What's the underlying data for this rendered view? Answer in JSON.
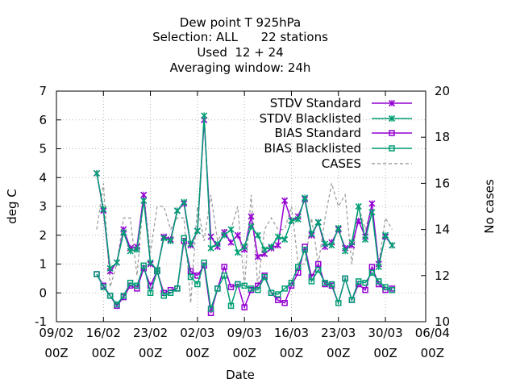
{
  "chart_data": {
    "type": "line",
    "title_lines": [
      "Dew point T 925hPa",
      "Selection: ALL      22 stations",
      "Used  12 + 24",
      "Averaging window: 24h"
    ],
    "xlabel": "Date",
    "ylabel": "deg C",
    "y2label": "No cases",
    "ylim": [
      -1,
      7
    ],
    "y2lim": [
      10,
      20
    ],
    "xlim": [
      0,
      55
    ],
    "yticks": [
      -1,
      0,
      1,
      2,
      3,
      4,
      5,
      6,
      7
    ],
    "y2ticks": [
      10,
      12,
      14,
      16,
      18,
      20
    ],
    "xtick_values": [
      0,
      7,
      14,
      21,
      28,
      35,
      42,
      49,
      56
    ],
    "xtick_labels": [
      [
        "09/02",
        "00Z"
      ],
      [
        "16/02",
        "00Z"
      ],
      [
        "23/02",
        "00Z"
      ],
      [
        "02/03",
        "00Z"
      ],
      [
        "09/03",
        "00Z"
      ],
      [
        "16/03",
        "00Z"
      ],
      [
        "23/03",
        "00Z"
      ],
      [
        "30/03",
        "00Z"
      ],
      [
        "06/04",
        "00Z"
      ]
    ],
    "grid": true,
    "legend_position": "top-right",
    "colors": {
      "standard": "#9400d3",
      "blacklisted": "#009e73",
      "cases": "#a0a0a0"
    },
    "x": [
      6,
      7,
      8,
      9,
      10,
      11,
      12,
      13,
      14,
      15,
      16,
      17,
      18,
      19,
      20,
      21,
      22,
      23,
      24,
      25,
      26,
      27,
      28,
      29,
      30,
      31,
      32,
      33,
      34,
      35,
      36,
      37,
      38,
      39,
      40,
      41,
      42,
      43,
      44,
      45,
      46,
      47,
      48,
      49,
      50
    ],
    "series": [
      {
        "name": "STDV Standard",
        "marker": "x",
        "role": "stdv_std",
        "values": [
          4.15,
          2.85,
          0.75,
          1.05,
          2.2,
          1.55,
          1.6,
          3.4,
          1.0,
          0.8,
          1.95,
          1.85,
          2.85,
          3.1,
          1.65,
          2.15,
          6.0,
          1.95,
          1.6,
          2.1,
          1.75,
          2.0,
          1.5,
          2.65,
          1.25,
          1.35,
          1.55,
          1.65,
          3.2,
          2.5,
          2.65,
          3.25,
          2.0,
          2.45,
          1.6,
          1.75,
          2.2,
          1.55,
          1.65,
          2.5,
          1.95,
          3.1,
          1.0,
          1.95,
          1.65
        ]
      },
      {
        "name": "STDV Blacklisted",
        "marker": "x",
        "role": "stdv_bl",
        "values": [
          4.15,
          2.9,
          0.85,
          1.05,
          2.1,
          1.45,
          1.5,
          3.2,
          1.05,
          0.8,
          1.9,
          1.8,
          2.85,
          3.15,
          1.7,
          2.15,
          6.15,
          1.55,
          1.7,
          2.0,
          2.2,
          1.4,
          1.6,
          2.3,
          2.0,
          1.5,
          1.6,
          1.95,
          1.85,
          2.5,
          2.55,
          3.3,
          2.05,
          2.45,
          1.7,
          1.65,
          2.25,
          1.45,
          1.75,
          3.0,
          1.85,
          2.8,
          0.9,
          2.0,
          1.65
        ]
      },
      {
        "name": "BIAS Standard",
        "marker": "square",
        "role": "bias_std",
        "values": [
          0.65,
          0.25,
          -0.1,
          -0.45,
          -0.15,
          0.25,
          0.15,
          0.85,
          0.25,
          0.75,
          0.0,
          0.1,
          0.15,
          1.8,
          0.75,
          0.6,
          0.95,
          -0.7,
          0.15,
          0.9,
          0.2,
          0.3,
          -0.5,
          0.1,
          0.25,
          0.6,
          0.0,
          -0.25,
          -0.35,
          0.25,
          0.7,
          1.6,
          0.55,
          1.0,
          0.3,
          0.25,
          -0.35,
          0.5,
          -0.25,
          0.3,
          0.1,
          0.9,
          0.3,
          0.1,
          0.15
        ]
      },
      {
        "name": "BIAS Blacklisted",
        "marker": "square",
        "role": "bias_bl",
        "values": [
          0.65,
          0.2,
          -0.1,
          -0.4,
          -0.1,
          0.35,
          0.25,
          0.95,
          0.0,
          0.75,
          -0.1,
          0.0,
          0.15,
          1.9,
          0.55,
          0.3,
          1.05,
          -0.55,
          0.15,
          0.6,
          -0.45,
          0.3,
          0.25,
          0.15,
          0.1,
          0.55,
          0.0,
          -0.05,
          0.15,
          0.35,
          0.9,
          1.5,
          0.4,
          0.8,
          0.35,
          0.3,
          -0.35,
          0.5,
          -0.25,
          0.4,
          0.35,
          0.7,
          0.4,
          0.2,
          0.1
        ]
      },
      {
        "name": "CASES",
        "role": "cases",
        "axis": "y2",
        "values": [
          14.0,
          16.0,
          11.5,
          12.5,
          14.5,
          14.5,
          12.0,
          15.5,
          13.0,
          15.0,
          15.0,
          14.0,
          14.5,
          14.5,
          10.8,
          15.0,
          13.5,
          15.5,
          13.5,
          14.0,
          14.0,
          15.0,
          11.5,
          15.5,
          11.5,
          14.0,
          14.5,
          14.0,
          14.0,
          15.0,
          12.5,
          12.5,
          14.5,
          12.5,
          14.5,
          16.0,
          15.0,
          15.5,
          12.5,
          15.0,
          14.0,
          15.0,
          12.5,
          14.5,
          14.0
        ]
      }
    ]
  }
}
